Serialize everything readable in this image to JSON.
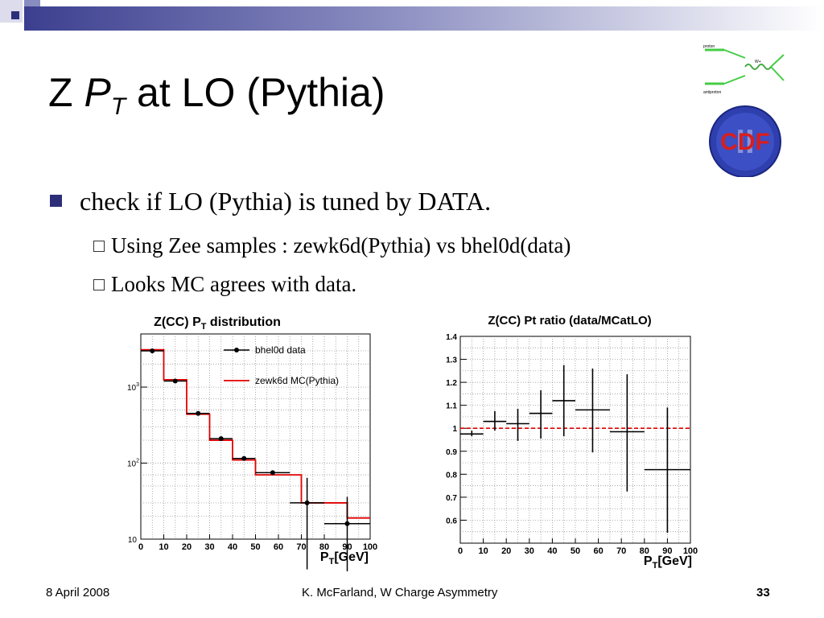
{
  "slide": {
    "title_prefix": "Z",
    "title_p": "P",
    "title_sub": "T",
    "title_suffix": "at LO (Pythia)",
    "bullet1": "check if LO (Pythia) is tuned by DATA.",
    "sub1": "Using Zee samples : zewk6d(Pythia) vs bhel0d(data)",
    "sub2": "Looks MC agrees with data.",
    "footer_date": "8 April 2008",
    "footer_center": "K. McFarland, W Charge Asymmetry",
    "footer_page": "33",
    "logo_text": "CDF",
    "logo_numeral": "II",
    "feynman_labels": [
      "proton",
      "antiproton",
      "W+"
    ]
  },
  "colors": {
    "accent": "#2c2e7a",
    "data": "#000000",
    "mc": "#e00000"
  },
  "chart_data": [
    {
      "type": "line",
      "title_main": "Z(CC) P",
      "title_sub": "T",
      "title_rest": " distribution",
      "xlabel_main": "P",
      "xlabel_sub": "T",
      "xlabel_rest": "[GeV]",
      "xlim": [
        0,
        100
      ],
      "ylim": [
        10,
        5000
      ],
      "log_y": true,
      "grid": true,
      "legend_placement": "top-right",
      "x_ticks": [
        "0",
        "10",
        "20",
        "30",
        "40",
        "50",
        "60",
        "70",
        "80",
        "90",
        "100"
      ],
      "y_ticks": [
        {
          "value": 10,
          "label": "10"
        },
        {
          "value": 100,
          "label": "10",
          "exp": "2"
        },
        {
          "value": 1000,
          "label": "10",
          "exp": "3"
        }
      ],
      "bin_edges": [
        0,
        10,
        20,
        30,
        40,
        50,
        60,
        70,
        80,
        90,
        100
      ],
      "series": [
        {
          "name": "bhel0d data",
          "style": "points",
          "x": [
            5,
            15,
            25,
            35,
            45,
            57.5,
            72.5,
            90
          ],
          "y": [
            3000,
            1200,
            450,
            210,
            115,
            75,
            30,
            16
          ],
          "yerr": [
            [
              0,
              0
            ],
            [
              0,
              0
            ],
            [
              0,
              0
            ],
            [
              0,
              0
            ],
            [
              0,
              0
            ],
            [
              0,
              0
            ],
            [
              26,
              34
            ],
            [
              13,
              20
            ]
          ],
          "xerr": [
            5,
            5,
            5,
            5,
            5,
            7.5,
            7.5,
            10
          ]
        },
        {
          "name": "zewk6d MC(Pythia)",
          "style": "step",
          "values": [
            3100,
            1250,
            440,
            200,
            110,
            70,
            70,
            30,
            30,
            19
          ]
        }
      ]
    },
    {
      "type": "scatter",
      "title": "Z(CC) Pt ratio (data/MCatLO)",
      "xlabel_main": "P",
      "xlabel_sub": "T",
      "xlabel_rest": "[GeV]",
      "xlim": [
        0,
        100
      ],
      "ylim": [
        0.5,
        1.4
      ],
      "grid": true,
      "reference_line": 1.0,
      "x_ticks": [
        "0",
        "10",
        "20",
        "30",
        "40",
        "50",
        "60",
        "70",
        "80",
        "90",
        "100"
      ],
      "y_ticks": [
        "0.6",
        "0.7",
        "0.8",
        "0.9",
        "1",
        "1.1",
        "1.2",
        "1.3",
        "1.4"
      ],
      "points": [
        {
          "x": 5,
          "xerr": 5,
          "y": 0.975,
          "ylo": 0.965,
          "yhi": 0.99
        },
        {
          "x": 15,
          "xerr": 5,
          "y": 1.03,
          "ylo": 0.99,
          "yhi": 1.075
        },
        {
          "x": 25,
          "xerr": 5,
          "y": 1.02,
          "ylo": 0.945,
          "yhi": 1.085
        },
        {
          "x": 35,
          "xerr": 5,
          "y": 1.065,
          "ylo": 0.955,
          "yhi": 1.165
        },
        {
          "x": 45,
          "xerr": 5,
          "y": 1.12,
          "ylo": 0.965,
          "yhi": 1.275
        },
        {
          "x": 57.5,
          "xerr": 7.5,
          "y": 1.08,
          "ylo": 0.895,
          "yhi": 1.26
        },
        {
          "x": 72.5,
          "xerr": 7.5,
          "y": 0.985,
          "ylo": 0.725,
          "yhi": 1.235
        },
        {
          "x": 90,
          "xerr": 10,
          "y": 0.82,
          "ylo": 0.545,
          "yhi": 1.09
        }
      ]
    }
  ]
}
